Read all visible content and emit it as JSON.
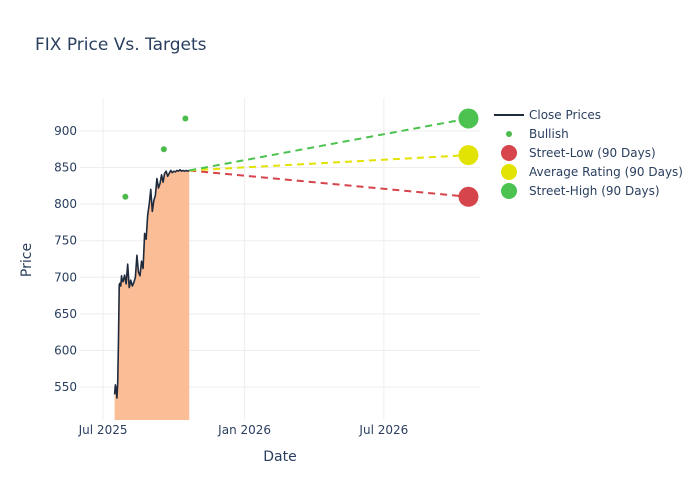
{
  "chart_data": {
    "type": "line",
    "title": "FIX Price Vs. Targets",
    "xlabel": "Date",
    "ylabel": "Price",
    "x_ticks": [
      {
        "label": "Jul 2025",
        "day": 0
      },
      {
        "label": "Jan 2026",
        "day": 184
      },
      {
        "label": "Jul 2026",
        "day": 365
      }
    ],
    "y_ticks": [
      550,
      600,
      650,
      700,
      750,
      800,
      850,
      900
    ],
    "xlim_days": [
      -30,
      490
    ],
    "ylim": [
      505,
      945
    ],
    "close_prices": {
      "name": "Close Prices",
      "color": "#1f2a3c",
      "fill_color": "#fbbd96",
      "days": [
        15,
        16,
        17,
        18,
        19,
        20,
        21,
        22,
        23,
        24,
        25,
        26,
        28,
        30,
        32,
        34,
        36,
        38,
        40,
        42,
        44,
        46,
        48,
        50,
        52,
        54,
        56,
        58,
        60,
        62,
        64,
        66,
        68,
        70,
        72,
        74,
        76,
        78,
        80,
        82,
        84,
        86,
        88,
        90,
        92,
        94,
        96,
        98,
        100,
        102,
        104,
        106,
        108,
        110,
        112
      ],
      "values": [
        540,
        553,
        548,
        535,
        555,
        612,
        690,
        692,
        688,
        702,
        695,
        694,
        703,
        691,
        718,
        686,
        696,
        688,
        693,
        700,
        730,
        707,
        702,
        722,
        712,
        760,
        752,
        785,
        800,
        820,
        790,
        805,
        812,
        835,
        822,
        828,
        840,
        830,
        842,
        845,
        838,
        842,
        846,
        843,
        845,
        844,
        846,
        845,
        847,
        845,
        846,
        845,
        846,
        845,
        846
      ]
    },
    "bullish": {
      "name": "Bullish",
      "color": "#4cba4c",
      "points": [
        {
          "day": 29,
          "value": 810
        },
        {
          "day": 79,
          "value": 875
        },
        {
          "day": 107,
          "value": 917
        }
      ]
    },
    "targets": {
      "start_day": 112,
      "start_value": 846,
      "end_day": 475,
      "lines": [
        {
          "name": "Street-Low (90 Days)",
          "value": 810,
          "color": "#d6444c"
        },
        {
          "name": "Average Rating (90 Days)",
          "value": 867,
          "color": "#e2e203"
        },
        {
          "name": "Street-High (90 Days)",
          "value": 917,
          "color": "#4cc350"
        }
      ]
    }
  }
}
